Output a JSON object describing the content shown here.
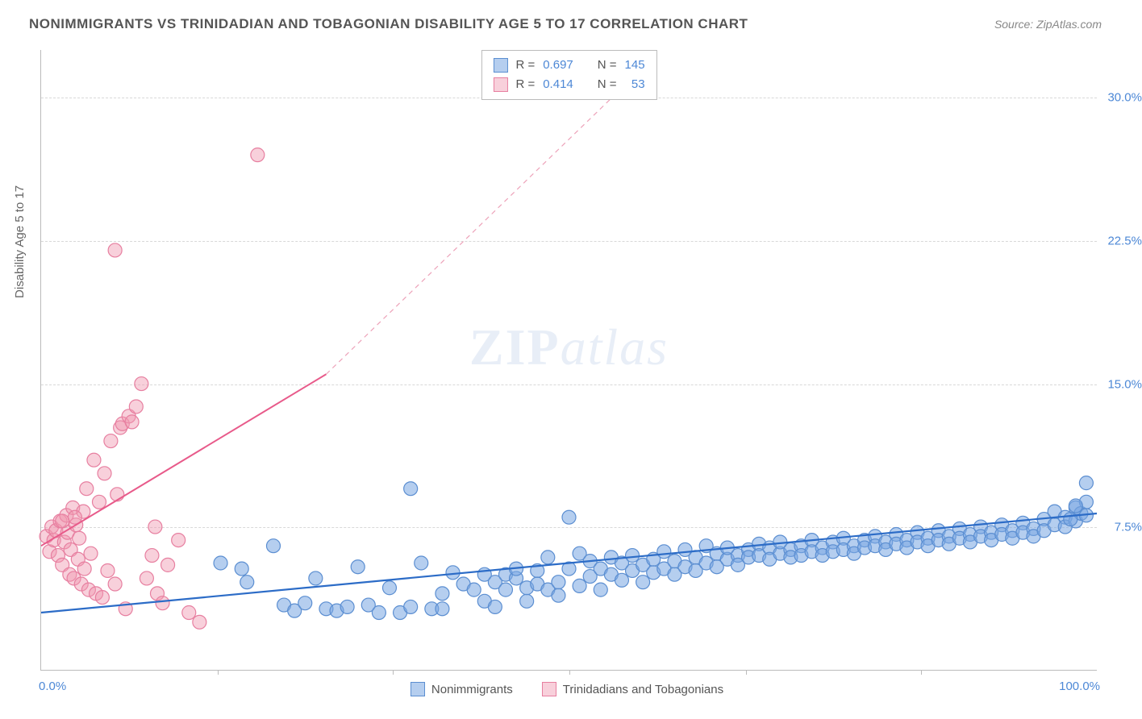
{
  "title": "NONIMMIGRANTS VS TRINIDADIAN AND TOBAGONIAN DISABILITY AGE 5 TO 17 CORRELATION CHART",
  "source_label": "Source: ",
  "source_value": "ZipAtlas.com",
  "y_axis_label": "Disability Age 5 to 17",
  "watermark_a": "ZIP",
  "watermark_b": "atlas",
  "chart": {
    "type": "scatter",
    "background_color": "#ffffff",
    "grid_color": "#d8d8d8",
    "axis_color": "#bbbbbb",
    "tick_color": "#4d88d6",
    "xlim": [
      0,
      100
    ],
    "ylim": [
      0,
      32.5
    ],
    "ytick_values": [
      7.5,
      15.0,
      22.5,
      30.0
    ],
    "ytick_labels": [
      "7.5%",
      "15.0%",
      "22.5%",
      "30.0%"
    ],
    "xtick_values": [
      0,
      50,
      100
    ],
    "xtick_major_values": [
      16.7,
      33.3,
      50,
      66.7,
      83.3
    ],
    "xmin_label": "0.0%",
    "xmax_label": "100.0%",
    "marker_radius": 8.5,
    "series": [
      {
        "name": "Nonimmigrants",
        "color_fill": "rgba(120,165,225,0.55)",
        "color_stroke": "#5b8ed1",
        "R": "0.697",
        "N": "145",
        "trend": {
          "x1": 0,
          "y1": 3.0,
          "x2": 100,
          "y2": 8.2,
          "stroke": "#2c6cc7",
          "width": 2.2,
          "dash": "none"
        },
        "points": [
          [
            17,
            5.6
          ],
          [
            19,
            5.3
          ],
          [
            19.5,
            4.6
          ],
          [
            22,
            6.5
          ],
          [
            23,
            3.4
          ],
          [
            24,
            3.1
          ],
          [
            25,
            3.5
          ],
          [
            26,
            4.8
          ],
          [
            27,
            3.2
          ],
          [
            28,
            3.1
          ],
          [
            29,
            3.3
          ],
          [
            30,
            5.4
          ],
          [
            31,
            3.4
          ],
          [
            32,
            3.0
          ],
          [
            33,
            4.3
          ],
          [
            34,
            3.0
          ],
          [
            35,
            3.3
          ],
          [
            35,
            9.5
          ],
          [
            36,
            5.6
          ],
          [
            37,
            3.2
          ],
          [
            38,
            4.0
          ],
          [
            38,
            3.2
          ],
          [
            39,
            5.1
          ],
          [
            40,
            4.5
          ],
          [
            41,
            4.2
          ],
          [
            42,
            3.6
          ],
          [
            42,
            5.0
          ],
          [
            43,
            3.3
          ],
          [
            43,
            4.6
          ],
          [
            44,
            5.0
          ],
          [
            44,
            4.2
          ],
          [
            45,
            4.8
          ],
          [
            45,
            5.3
          ],
          [
            46,
            3.6
          ],
          [
            46,
            4.3
          ],
          [
            47,
            5.2
          ],
          [
            47,
            4.5
          ],
          [
            48,
            5.9
          ],
          [
            48,
            4.2
          ],
          [
            49,
            4.6
          ],
          [
            49,
            3.9
          ],
          [
            50,
            5.3
          ],
          [
            50,
            8.0
          ],
          [
            51,
            6.1
          ],
          [
            51,
            4.4
          ],
          [
            52,
            4.9
          ],
          [
            52,
            5.7
          ],
          [
            53,
            4.2
          ],
          [
            53,
            5.3
          ],
          [
            54,
            5.0
          ],
          [
            54,
            5.9
          ],
          [
            55,
            5.6
          ],
          [
            55,
            4.7
          ],
          [
            56,
            5.2
          ],
          [
            56,
            6.0
          ],
          [
            57,
            4.6
          ],
          [
            57,
            5.5
          ],
          [
            58,
            5.8
          ],
          [
            58,
            5.1
          ],
          [
            59,
            5.3
          ],
          [
            59,
            6.2
          ],
          [
            60,
            5.0
          ],
          [
            60,
            5.7
          ],
          [
            61,
            6.3
          ],
          [
            61,
            5.4
          ],
          [
            62,
            5.9
          ],
          [
            62,
            5.2
          ],
          [
            63,
            6.5
          ],
          [
            63,
            5.6
          ],
          [
            64,
            6.1
          ],
          [
            64,
            5.4
          ],
          [
            65,
            5.8
          ],
          [
            65,
            6.4
          ],
          [
            66,
            6.0
          ],
          [
            66,
            5.5
          ],
          [
            67,
            6.3
          ],
          [
            67,
            5.9
          ],
          [
            68,
            6.6
          ],
          [
            68,
            6.0
          ],
          [
            69,
            6.4
          ],
          [
            69,
            5.8
          ],
          [
            70,
            6.1
          ],
          [
            70,
            6.7
          ],
          [
            71,
            6.3
          ],
          [
            71,
            5.9
          ],
          [
            72,
            6.5
          ],
          [
            72,
            6.0
          ],
          [
            73,
            6.8
          ],
          [
            73,
            6.2
          ],
          [
            74,
            6.4
          ],
          [
            74,
            6.0
          ],
          [
            75,
            6.7
          ],
          [
            75,
            6.2
          ],
          [
            76,
            6.9
          ],
          [
            76,
            6.3
          ],
          [
            77,
            6.5
          ],
          [
            77,
            6.1
          ],
          [
            78,
            6.8
          ],
          [
            78,
            6.4
          ],
          [
            79,
            7.0
          ],
          [
            79,
            6.5
          ],
          [
            80,
            6.7
          ],
          [
            80,
            6.3
          ],
          [
            81,
            7.1
          ],
          [
            81,
            6.6
          ],
          [
            82,
            6.8
          ],
          [
            82,
            6.4
          ],
          [
            83,
            7.2
          ],
          [
            83,
            6.7
          ],
          [
            84,
            6.9
          ],
          [
            84,
            6.5
          ],
          [
            85,
            7.3
          ],
          [
            85,
            6.8
          ],
          [
            86,
            7.0
          ],
          [
            86,
            6.6
          ],
          [
            87,
            7.4
          ],
          [
            87,
            6.9
          ],
          [
            88,
            7.1
          ],
          [
            88,
            6.7
          ],
          [
            89,
            7.5
          ],
          [
            89,
            7.0
          ],
          [
            90,
            7.2
          ],
          [
            90,
            6.8
          ],
          [
            91,
            7.6
          ],
          [
            91,
            7.1
          ],
          [
            92,
            7.3
          ],
          [
            92,
            6.9
          ],
          [
            93,
            7.7
          ],
          [
            93,
            7.2
          ],
          [
            94,
            7.4
          ],
          [
            94,
            7.0
          ],
          [
            95,
            7.9
          ],
          [
            95,
            7.3
          ],
          [
            96,
            7.6
          ],
          [
            96,
            8.3
          ],
          [
            97,
            8.0
          ],
          [
            97,
            7.5
          ],
          [
            98,
            8.5
          ],
          [
            98,
            7.8
          ],
          [
            98.5,
            8.2
          ],
          [
            99,
            8.8
          ],
          [
            99,
            8.1
          ],
          [
            99,
            9.8
          ],
          [
            98,
            8.6
          ],
          [
            97.5,
            7.9
          ]
        ]
      },
      {
        "name": "Trinidadians and Tobagonians",
        "color_fill": "rgba(240,150,175,0.45)",
        "color_stroke": "#e77fa0",
        "R": "0.414",
        "N": "53",
        "trend_solid": {
          "x1": 0,
          "y1": 6.5,
          "x2": 27,
          "y2": 15.5,
          "stroke": "#e85a8a",
          "width": 2.0
        },
        "trend_dash": {
          "x1": 27,
          "y1": 15.5,
          "x2": 55,
          "y2": 30.5,
          "stroke": "#eda2b9",
          "width": 1.2,
          "dash": "6,5"
        },
        "points": [
          [
            0.5,
            7.0
          ],
          [
            0.8,
            6.2
          ],
          [
            1.0,
            7.5
          ],
          [
            1.2,
            6.8
          ],
          [
            1.4,
            7.3
          ],
          [
            1.6,
            6.0
          ],
          [
            1.8,
            7.8
          ],
          [
            2.0,
            5.5
          ],
          [
            2.2,
            6.7
          ],
          [
            2.4,
            8.1
          ],
          [
            2.5,
            7.2
          ],
          [
            2.7,
            5.0
          ],
          [
            2.8,
            6.3
          ],
          [
            3.0,
            8.5
          ],
          [
            3.1,
            4.8
          ],
          [
            3.3,
            7.6
          ],
          [
            3.5,
            5.8
          ],
          [
            3.6,
            6.9
          ],
          [
            3.8,
            4.5
          ],
          [
            4.0,
            8.3
          ],
          [
            4.1,
            5.3
          ],
          [
            4.3,
            9.5
          ],
          [
            4.5,
            4.2
          ],
          [
            4.7,
            6.1
          ],
          [
            5.0,
            11.0
          ],
          [
            5.2,
            4.0
          ],
          [
            5.5,
            8.8
          ],
          [
            5.8,
            3.8
          ],
          [
            6.0,
            10.3
          ],
          [
            6.3,
            5.2
          ],
          [
            6.6,
            12.0
          ],
          [
            7.0,
            4.5
          ],
          [
            7.2,
            9.2
          ],
          [
            7.5,
            12.7
          ],
          [
            7.7,
            12.9
          ],
          [
            8.0,
            3.2
          ],
          [
            8.3,
            13.3
          ],
          [
            8.6,
            13.0
          ],
          [
            9.0,
            13.8
          ],
          [
            9.5,
            15.0
          ],
          [
            10.0,
            4.8
          ],
          [
            7.0,
            22.0
          ],
          [
            10.5,
            6.0
          ],
          [
            11.0,
            4.0
          ],
          [
            11.5,
            3.5
          ],
          [
            12.0,
            5.5
          ],
          [
            13.0,
            6.8
          ],
          [
            14.0,
            3.0
          ],
          [
            15.0,
            2.5
          ],
          [
            10.8,
            7.5
          ],
          [
            20.5,
            27.0
          ],
          [
            3.2,
            8.0
          ],
          [
            2.0,
            7.8
          ]
        ]
      }
    ]
  },
  "legend_top": {
    "rows": [
      {
        "swatch_fill": "rgba(120,165,225,0.55)",
        "swatch_border": "#5b8ed1",
        "r_label": "R = ",
        "r_val": "0.697",
        "n_label": "N = ",
        "n_val": "145"
      },
      {
        "swatch_fill": "rgba(240,150,175,0.45)",
        "swatch_border": "#e77fa0",
        "r_label": "R = ",
        "r_val": "0.414",
        "n_label": "N = ",
        "n_val": "  53"
      }
    ]
  },
  "legend_bottom": {
    "items": [
      {
        "swatch_fill": "rgba(120,165,225,0.55)",
        "swatch_border": "#5b8ed1",
        "label": "Nonimmigrants"
      },
      {
        "swatch_fill": "rgba(240,150,175,0.45)",
        "swatch_border": "#e77fa0",
        "label": "Trinidadians and Tobagonians"
      }
    ]
  }
}
